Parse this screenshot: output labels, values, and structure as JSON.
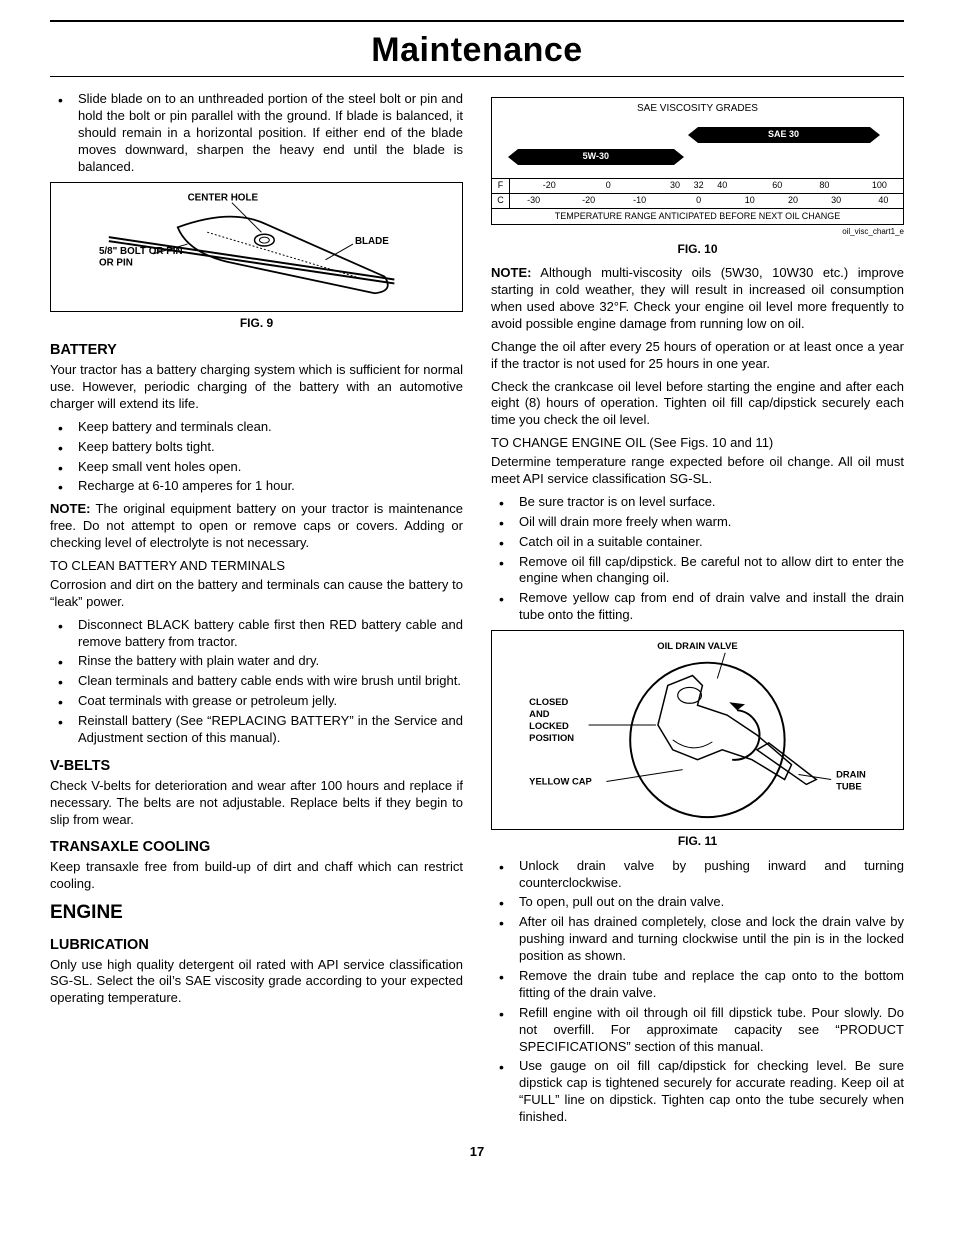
{
  "page_title": "Maintenance",
  "page_number": "17",
  "left": {
    "intro_bullet": "Slide blade on to an unthreaded portion of the steel bolt or pin and hold the bolt or pin parallel with the ground. If blade is balanced, it should remain in a horizontal position.  If either end of the blade moves downward, sharpen the heavy end until the blade is balanced.",
    "fig9": {
      "caption": "FIG. 9",
      "labels": {
        "center_hole": "CENTER HOLE",
        "blade": "BLADE",
        "bolt": "5/8\" BOLT OR PIN"
      }
    },
    "battery": {
      "heading": "BATTERY",
      "p1": "Your tractor has a battery charging system which is sufficient for normal use.  However, periodic charging of the battery with an automotive charger will extend its life.",
      "bullets1": [
        "Keep battery and terminals clean.",
        "Keep battery bolts tight.",
        "Keep small vent holes open.",
        "Recharge at  6-10 amperes for 1 hour."
      ],
      "note_label": "NOTE:",
      "note": " The original equipment battery on your tractor is maintenance free. Do not attempt to open or remove caps or covers. Adding or checking level of electrolyte is not necessary.",
      "clean_heading": "TO CLEAN BATTERY AND TERMINALS",
      "p2": "Corrosion and dirt on the battery and terminals can cause the battery to “leak” power.",
      "bullets2": [
        "Disconnect BLACK battery cable first  then RED  battery cable and remove battery from tractor.",
        "Rinse the battery with plain water and dry.",
        "Clean terminals and battery cable ends with wire brush until bright.",
        "Coat terminals with grease or petroleum jelly.",
        "Reinstall battery (See “REPLACING BATTERY” in the Service and Adjustment section of this manual)."
      ]
    },
    "vbelts": {
      "heading": "V-BELTS",
      "p": "Check V-belts for deterioration and wear after 100 hours and replace if necessary. The belts are not adjustable. Replace belts if they begin to slip from wear."
    },
    "transaxle": {
      "heading": "TRANSAXLE COOLING",
      "p": "Keep transaxle free from build-up of dirt and chaff which can restrict cooling."
    },
    "engine": {
      "heading": "ENGINE",
      "lub_heading": "LUBRICATION",
      "p": "Only use high quality detergent oil rated with API service classification SG-SL.  Select the oil’s SAE viscosity grade according to your expected operating temperature."
    }
  },
  "right": {
    "fig10": {
      "title": "SAE VISCOSITY GRADES",
      "bar_sae30": "SAE 30",
      "bar_5w30": "5W-30",
      "f_row": {
        "unit": "F",
        "ticks": [
          {
            "v": "-20",
            "pct": 10
          },
          {
            "v": "0",
            "pct": 25
          },
          {
            "v": "30",
            "pct": 42
          },
          {
            "v": "32",
            "pct": 48
          },
          {
            "v": "40",
            "pct": 54
          },
          {
            "v": "60",
            "pct": 68
          },
          {
            "v": "80",
            "pct": 80
          },
          {
            "v": "100",
            "pct": 94
          }
        ]
      },
      "c_row": {
        "unit": "C",
        "ticks": [
          {
            "v": "-30",
            "pct": 6
          },
          {
            "v": "-20",
            "pct": 20
          },
          {
            "v": "-10",
            "pct": 33
          },
          {
            "v": "0",
            "pct": 48
          },
          {
            "v": "10",
            "pct": 61
          },
          {
            "v": "20",
            "pct": 72
          },
          {
            "v": "30",
            "pct": 83
          },
          {
            "v": "40",
            "pct": 95
          }
        ]
      },
      "footer": "TEMPERATURE RANGE ANTICIPATED BEFORE NEXT OIL CHANGE",
      "credit": "oil_visc_chart1_e",
      "caption": "FIG. 10"
    },
    "note_label": "NOTE:",
    "note": "  Although multi-viscosity oils (5W30, 10W30 etc.) improve starting in cold weather, they will result in increased oil consumption when used above 32°F.  Check your engine oil level more frequently to avoid possible engine damage from running low on oil.",
    "p1": "Change the oil after every 25 hours of operation or at least once a year if the tractor is not used for 25 hours in one year.",
    "p2": "Check the crankcase oil level before starting the engine and after each eight (8) hours of operation.  Tighten oil fill cap/dipstick securely each time you check the oil level.",
    "change_heading": "TO CHANGE ENGINE OIL (See Figs. 10 and 11)",
    "p3": "Determine temperature range expected before oil change. All oil must meet API service classification SG-SL.",
    "bullets1": [
      "Be sure tractor is on level surface.",
      "Oil will drain more freely when warm.",
      "Catch oil in a suitable container.",
      "Remove oil fill cap/dipstick.  Be careful not to allow dirt to enter the engine when changing oil.",
      "Remove yellow cap from end of drain valve and install the drain tube onto the fitting."
    ],
    "fig11": {
      "caption": "FIG. 11",
      "labels": {
        "valve": "OIL DRAIN VALVE",
        "closed1": "CLOSED",
        "closed2": "AND",
        "closed3": "LOCKED",
        "closed4": "POSITION",
        "yellow": "YELLOW CAP",
        "drain1": "DRAIN",
        "drain2": "TUBE"
      }
    },
    "bullets2": [
      "Unlock drain valve by pushing inward and turning counterclockwise.",
      "To open, pull out on the drain valve.",
      "After oil has drained completely, close and lock the drain valve by pushing inward and turning clockwise until the pin is in the locked position as shown.",
      "Remove the drain tube and replace the cap onto to the bottom fitting of the drain valve.",
      "Refill engine with oil through oil fill dipstick tube.  Pour slowly.  Do not overfill.  For approximate capacity see “PRODUCT SPECIFICATIONS” section of this manual.",
      "Use gauge on oil fill cap/dipstick for checking level. Be sure dipstick cap is tightened securely for accurate reading.  Keep oil at “FULL” line on dipstick. Tighten cap onto the tube securely when finished."
    ]
  }
}
